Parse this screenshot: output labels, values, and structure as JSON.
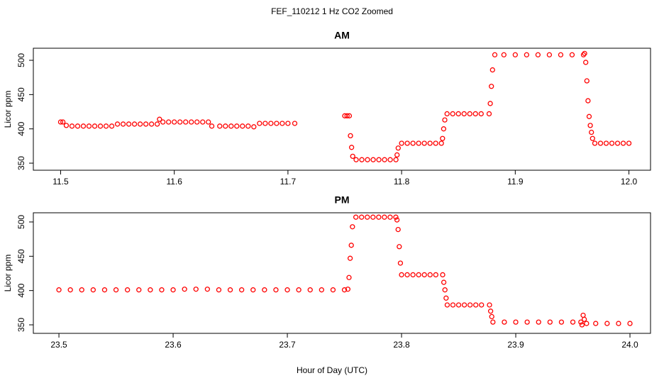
{
  "title": "FEF_110212  1 Hz CO2 Zoomed",
  "xlabel": "Hour of Day (UTC)",
  "chart_data": [
    {
      "type": "scatter",
      "title": "AM",
      "ylabel": "Licor ppm",
      "color": "#ff0000",
      "xlim": [
        11.476,
        12.019
      ],
      "ylim": [
        339.7,
        517.6
      ],
      "xticks": [
        11.5,
        11.6,
        11.7,
        11.8,
        11.9,
        {
          "value": 12,
          "label": "12.0"
        }
      ],
      "yticks": [
        350,
        400,
        450,
        500
      ],
      "x": [
        11.5,
        11.502,
        11.505,
        11.51,
        11.515,
        11.52,
        11.525,
        11.53,
        11.535,
        11.54,
        11.545,
        11.55,
        11.555,
        11.56,
        11.565,
        11.57,
        11.575,
        11.58,
        11.585,
        11.587,
        11.59,
        11.595,
        11.6,
        11.605,
        11.61,
        11.615,
        11.62,
        11.625,
        11.63,
        11.633,
        11.64,
        11.645,
        11.65,
        11.655,
        11.66,
        11.665,
        11.67,
        11.675,
        11.68,
        11.685,
        11.69,
        11.695,
        11.7,
        11.706,
        11.75,
        11.752,
        11.754,
        11.755,
        11.756,
        11.757,
        11.76,
        11.765,
        11.77,
        11.775,
        11.78,
        11.785,
        11.79,
        11.795,
        11.796,
        11.797,
        11.8,
        11.805,
        11.81,
        11.815,
        11.82,
        11.825,
        11.83,
        11.835,
        11.836,
        11.837,
        11.838,
        11.84,
        11.845,
        11.85,
        11.855,
        11.86,
        11.865,
        11.87,
        11.877,
        11.878,
        11.879,
        11.88,
        11.882,
        11.89,
        11.9,
        11.91,
        11.92,
        11.93,
        11.94,
        11.95,
        11.96,
        11.961,
        11.962,
        11.963,
        11.964,
        11.965,
        11.966,
        11.967,
        11.968,
        11.97,
        11.975,
        11.98,
        11.985,
        11.99,
        11.995,
        12.0
      ],
      "values": [
        410,
        410,
        405,
        404,
        404,
        404,
        404,
        404,
        404,
        404,
        404,
        407,
        407,
        407,
        407,
        407,
        407,
        407,
        407,
        414,
        410,
        410,
        410,
        410,
        410,
        410,
        410,
        410,
        410,
        404,
        404,
        404,
        404,
        404,
        404,
        404,
        403,
        408,
        408,
        408,
        408,
        408,
        408,
        408,
        419,
        419,
        419,
        390,
        373,
        360,
        355,
        355,
        355,
        355,
        355,
        355,
        355,
        355,
        362,
        372,
        379,
        379,
        379,
        379,
        379,
        379,
        379,
        379,
        386,
        400,
        413,
        422,
        422,
        422,
        422,
        422,
        422,
        422,
        422,
        437,
        462,
        486,
        508,
        508,
        508,
        508,
        508,
        508,
        508,
        508,
        508,
        510,
        497,
        470,
        441,
        418,
        405,
        395,
        386,
        379,
        379,
        379,
        379,
        379,
        379,
        379
      ]
    },
    {
      "type": "scatter",
      "title": "PM",
      "ylabel": "Licor ppm",
      "color": "#ff0000",
      "xlim": [
        23.4776,
        24.018
      ],
      "ylim": [
        337.6,
        513.4
      ],
      "xticks": [
        23.5,
        23.6,
        23.7,
        23.8,
        23.9,
        {
          "value": 24,
          "label": "24.0"
        }
      ],
      "yticks": [
        350,
        400,
        450,
        500
      ],
      "x": [
        23.5,
        23.51,
        23.52,
        23.53,
        23.54,
        23.55,
        23.56,
        23.57,
        23.58,
        23.59,
        23.6,
        23.61,
        23.62,
        23.63,
        23.64,
        23.65,
        23.66,
        23.67,
        23.68,
        23.69,
        23.7,
        23.71,
        23.72,
        23.73,
        23.74,
        23.75,
        23.753,
        23.754,
        23.755,
        23.756,
        23.757,
        23.76,
        23.765,
        23.77,
        23.775,
        23.78,
        23.785,
        23.79,
        23.795,
        23.796,
        23.797,
        23.798,
        23.799,
        23.8,
        23.805,
        23.81,
        23.815,
        23.82,
        23.825,
        23.83,
        23.836,
        23.837,
        23.838,
        23.839,
        23.84,
        23.845,
        23.85,
        23.855,
        23.86,
        23.865,
        23.87,
        23.877,
        23.878,
        23.879,
        23.88,
        23.89,
        23.9,
        23.91,
        23.92,
        23.93,
        23.94,
        23.95,
        23.957,
        23.958,
        23.959,
        23.96,
        23.962,
        23.97,
        23.98,
        23.99,
        24.0
      ],
      "values": [
        401,
        401,
        401,
        401,
        401,
        401,
        401,
        401,
        401,
        401,
        401,
        402,
        402,
        402,
        401,
        401,
        401,
        401,
        401,
        401,
        401,
        401,
        401,
        401,
        401,
        401,
        402,
        419,
        447,
        466,
        493,
        507,
        507,
        507,
        507,
        507,
        507,
        507,
        507,
        503,
        489,
        464,
        440,
        423,
        423,
        423,
        423,
        423,
        423,
        423,
        423,
        412,
        401,
        389,
        379,
        379,
        379,
        379,
        379,
        379,
        379,
        379,
        370,
        362,
        354,
        354,
        354,
        354,
        354,
        354,
        354,
        354,
        354,
        350,
        364,
        358,
        352,
        352,
        352,
        352,
        352
      ]
    }
  ]
}
